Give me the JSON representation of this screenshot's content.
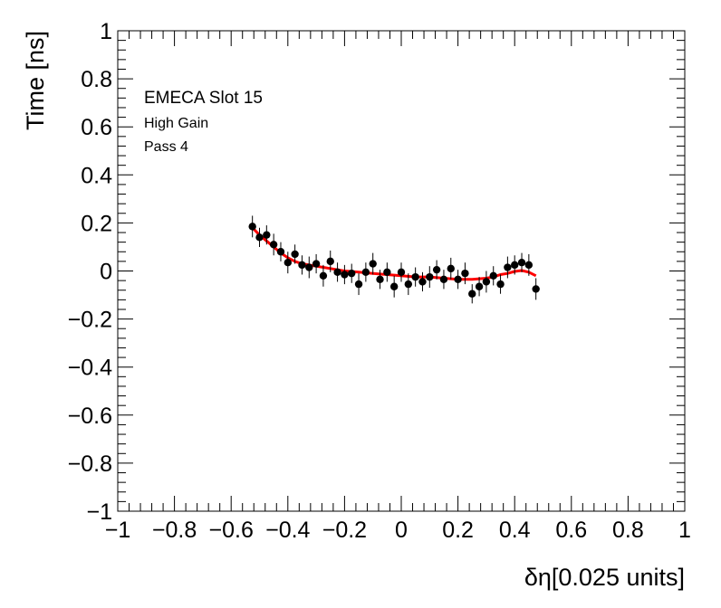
{
  "chart_data": {
    "type": "scatter",
    "title": "",
    "xlabel": "δη[0.025 units]",
    "ylabel": "Time [ns]",
    "xlim": [
      -1,
      1
    ],
    "ylim": [
      -1,
      1
    ],
    "grid": false,
    "x_tick_labels": [
      "−1",
      "−0.8",
      "−0.6",
      "−0.4",
      "−0.2",
      "0",
      "0.2",
      "0.4",
      "0.6",
      "0.8",
      "1"
    ],
    "x_tick_values": [
      -1,
      -0.8,
      -0.6,
      -0.4,
      -0.2,
      0,
      0.2,
      0.4,
      0.6,
      0.8,
      1
    ],
    "y_tick_labels": [
      "−1",
      "−0.8",
      "−0.6",
      "−0.4",
      "−0.2",
      "0",
      "0.2",
      "0.4",
      "0.6",
      "0.8",
      "1"
    ],
    "y_tick_values": [
      -1,
      -0.8,
      -0.6,
      -0.4,
      -0.2,
      0,
      0.2,
      0.4,
      0.6,
      0.8,
      1
    ],
    "annotations": [
      "EMECA Slot 15",
      "High Gain",
      "Pass 4"
    ],
    "colors": {
      "points": "#000000",
      "fit": "#ff0000"
    },
    "series": [
      {
        "type": "points_with_errors",
        "x": [
          -0.525,
          -0.5,
          -0.475,
          -0.45,
          -0.425,
          -0.4,
          -0.375,
          -0.35,
          -0.325,
          -0.3,
          -0.275,
          -0.25,
          -0.225,
          -0.2,
          -0.175,
          -0.15,
          -0.125,
          -0.1,
          -0.075,
          -0.05,
          -0.025,
          0.0,
          0.025,
          0.05,
          0.075,
          0.1,
          0.125,
          0.15,
          0.175,
          0.2,
          0.225,
          0.25,
          0.275,
          0.3,
          0.325,
          0.35,
          0.375,
          0.4,
          0.425,
          0.45,
          0.475
        ],
        "y": [
          0.185,
          0.14,
          0.15,
          0.11,
          0.08,
          0.035,
          0.07,
          0.025,
          0.015,
          0.03,
          -0.02,
          0.04,
          -0.005,
          -0.015,
          -0.01,
          -0.055,
          -0.005,
          0.03,
          -0.035,
          -0.005,
          -0.065,
          -0.005,
          -0.055,
          -0.025,
          -0.045,
          -0.025,
          0.005,
          -0.035,
          0.01,
          -0.035,
          -0.01,
          -0.095,
          -0.065,
          -0.045,
          -0.02,
          -0.055,
          0.015,
          0.025,
          0.035,
          0.025,
          -0.075
        ],
        "yerr": [
          0.045,
          0.04,
          0.04,
          0.045,
          0.04,
          0.045,
          0.04,
          0.04,
          0.045,
          0.04,
          0.045,
          0.045,
          0.04,
          0.04,
          0.04,
          0.045,
          0.04,
          0.045,
          0.04,
          0.04,
          0.045,
          0.04,
          0.045,
          0.04,
          0.04,
          0.045,
          0.04,
          0.04,
          0.045,
          0.04,
          0.045,
          0.04,
          0.04,
          0.045,
          0.04,
          0.04,
          0.045,
          0.04,
          0.04,
          0.045,
          0.045
        ]
      },
      {
        "type": "fit_curve",
        "x": [
          -0.525,
          -0.5,
          -0.475,
          -0.45,
          -0.425,
          -0.4,
          -0.375,
          -0.35,
          -0.325,
          -0.3,
          -0.275,
          -0.25,
          -0.2,
          -0.15,
          -0.1,
          -0.05,
          0.0,
          0.05,
          0.1,
          0.15,
          0.2,
          0.25,
          0.3,
          0.325,
          0.35,
          0.375,
          0.4,
          0.425,
          0.45,
          0.475
        ],
        "y": [
          0.18,
          0.15,
          0.125,
          0.1,
          0.075,
          0.055,
          0.04,
          0.03,
          0.025,
          0.02,
          0.015,
          0.01,
          0.0,
          -0.005,
          -0.01,
          -0.015,
          -0.02,
          -0.025,
          -0.025,
          -0.03,
          -0.035,
          -0.035,
          -0.03,
          -0.025,
          -0.015,
          -0.01,
          -0.002,
          0.002,
          -0.005,
          -0.02
        ]
      }
    ]
  }
}
